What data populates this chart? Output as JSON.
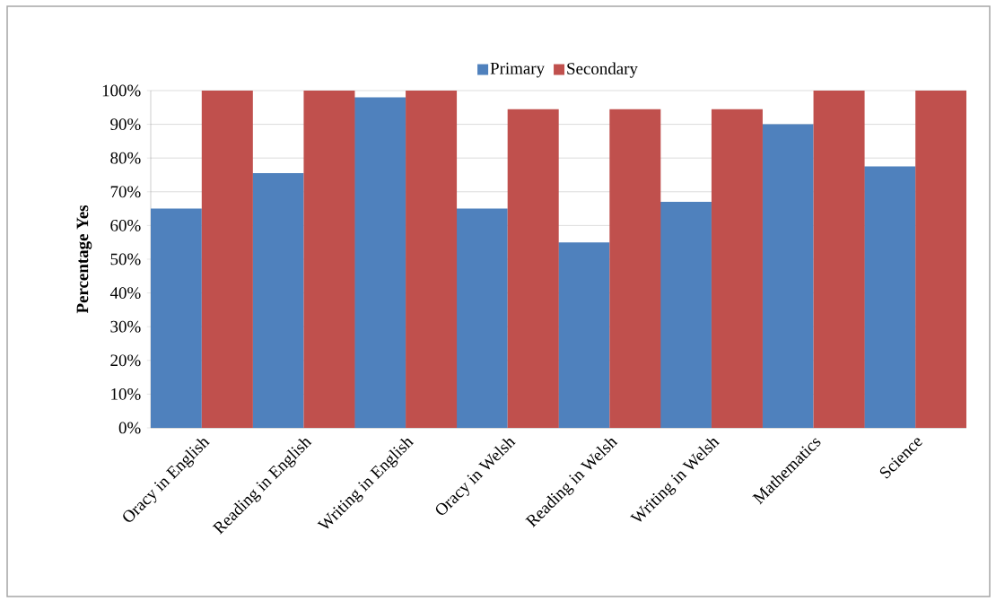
{
  "chart_data": {
    "type": "bar",
    "ylabel": "Percentage Yes",
    "categories": [
      "Oracy in English",
      "Reading in English",
      "Writing in English",
      "Oracy in Welsh",
      "Reading in Welsh",
      "Writing in Welsh",
      "Mathematics",
      "Science"
    ],
    "series": [
      {
        "name": "Primary",
        "color": "#4f81bd",
        "values": [
          65,
          75.5,
          98,
          65,
          55,
          67,
          90,
          77.5
        ]
      },
      {
        "name": "Secondary",
        "color": "#c0504d",
        "values": [
          100,
          100,
          100,
          94.5,
          94.5,
          94.5,
          100,
          100
        ]
      }
    ],
    "ylim": [
      0,
      100
    ],
    "yticks": [
      {
        "value": 0,
        "label": "0%"
      },
      {
        "value": 10,
        "label": "10%"
      },
      {
        "value": 20,
        "label": "20%"
      },
      {
        "value": 30,
        "label": "30%"
      },
      {
        "value": 40,
        "label": "40%"
      },
      {
        "value": 50,
        "label": "50%"
      },
      {
        "value": 60,
        "label": "60%"
      },
      {
        "value": 70,
        "label": "70%"
      },
      {
        "value": 80,
        "label": "80%"
      },
      {
        "value": 90,
        "label": "90%"
      },
      {
        "value": 100,
        "label": "100%"
      }
    ],
    "grid": "y",
    "legend": "top"
  }
}
